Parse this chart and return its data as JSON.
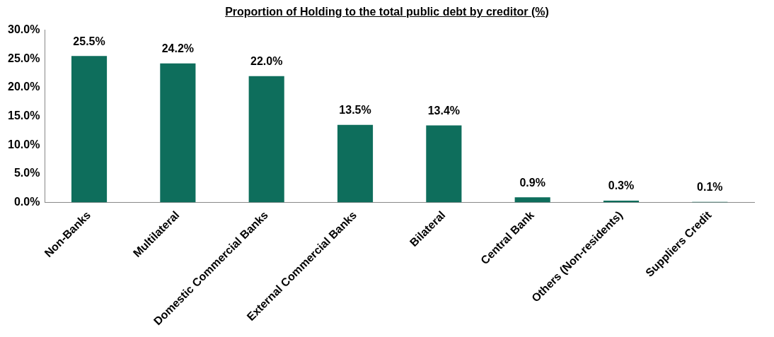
{
  "chart_data": {
    "type": "bar",
    "title": "Proportion of Holding to the total public debt by creditor (%)",
    "categories": [
      "Non-Banks",
      "Multilateral",
      "Domestic Commercial Banks",
      "External Commercial Banks",
      "Bilateral",
      "Central Bank",
      "Others (Non-residents)",
      "Suppliers Credit"
    ],
    "values": [
      25.5,
      24.2,
      22.0,
      13.5,
      13.4,
      0.9,
      0.3,
      0.1
    ],
    "value_labels": [
      "25.5%",
      "24.2%",
      "22.0%",
      "13.5%",
      "13.4%",
      "0.9%",
      "0.3%",
      "0.1%"
    ],
    "color": "#0e6e5c",
    "ylim": [
      0,
      30
    ],
    "yticks": [
      {
        "value": 0,
        "label": "0.0%"
      },
      {
        "value": 5,
        "label": "5.0%"
      },
      {
        "value": 10,
        "label": "10.0%"
      },
      {
        "value": 15,
        "label": "15.0%"
      },
      {
        "value": 20,
        "label": "20.0%"
      },
      {
        "value": 25,
        "label": "25.0%"
      },
      {
        "value": 30,
        "label": "30.0%"
      }
    ],
    "grid": false,
    "legend": false
  }
}
